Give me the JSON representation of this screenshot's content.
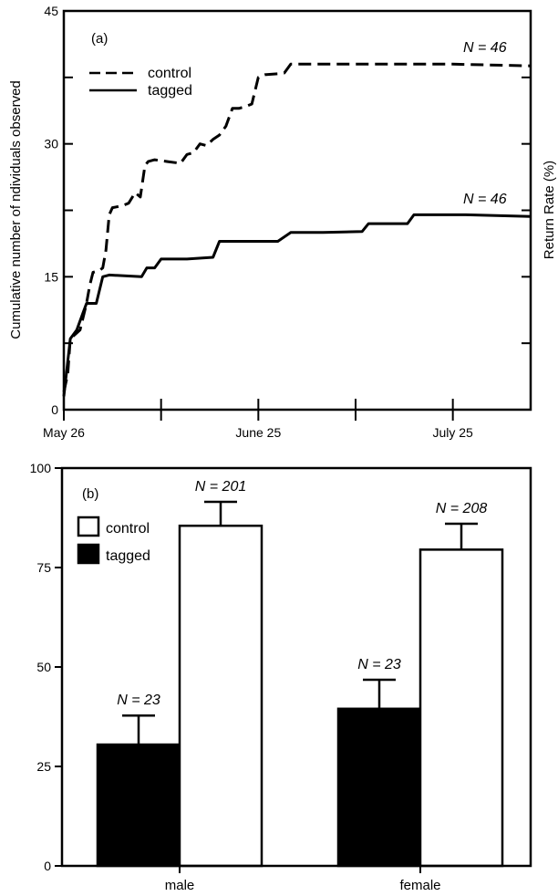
{
  "chart_data": [
    {
      "type": "line",
      "panel_label": "(a)",
      "ylabel": "Cumulative number of ndividuals observed",
      "right_ylabel": "Return Rate (%)",
      "ylim": [
        0,
        45
      ],
      "yticks": [
        0,
        15,
        30,
        45
      ],
      "x_day_range": [
        0,
        72
      ],
      "xticks": [
        {
          "day": 0,
          "label": "May 26"
        },
        {
          "day": 15,
          "label": ""
        },
        {
          "day": 30,
          "label": "June 25"
        },
        {
          "day": 45,
          "label": ""
        },
        {
          "day": 60,
          "label": "July 25"
        }
      ],
      "legend": [
        {
          "label": "control",
          "style": "dashed"
        },
        {
          "label": "tagged",
          "style": "solid"
        }
      ],
      "series": [
        {
          "name": "control",
          "style": "dashed",
          "end_label": "N = 46",
          "points": [
            [
              0,
              2
            ],
            [
              0.6,
              4
            ],
            [
              1,
              8
            ],
            [
              2.5,
              9
            ],
            [
              3.5,
              12
            ],
            [
              4,
              14
            ],
            [
              4.5,
              15.5
            ],
            [
              5.5,
              15.7
            ],
            [
              6,
              16
            ],
            [
              6.5,
              18
            ],
            [
              7,
              22
            ],
            [
              7.5,
              22.8
            ],
            [
              9,
              23
            ],
            [
              10,
              23.3
            ],
            [
              11,
              24.5
            ],
            [
              11.8,
              24
            ],
            [
              12.5,
              27.5
            ],
            [
              13,
              28
            ],
            [
              14,
              28.2
            ],
            [
              16,
              28
            ],
            [
              18,
              27.8
            ],
            [
              19,
              28.8
            ],
            [
              20,
              29
            ],
            [
              21,
              30
            ],
            [
              22,
              29.8
            ],
            [
              23,
              30.5
            ],
            [
              24,
              31
            ],
            [
              25,
              32
            ],
            [
              26,
              34
            ],
            [
              27,
              34
            ],
            [
              28,
              34.2
            ],
            [
              29,
              34.5
            ],
            [
              30,
              37.5
            ],
            [
              31,
              37.8
            ],
            [
              33,
              37.9
            ],
            [
              34,
              38
            ],
            [
              35,
              39
            ],
            [
              40,
              39
            ],
            [
              50,
              39
            ],
            [
              60,
              39
            ],
            [
              72,
              38.8
            ]
          ]
        },
        {
          "name": "tagged",
          "style": "solid",
          "end_label": "N = 46",
          "points": [
            [
              0,
              1.5
            ],
            [
              1,
              8
            ],
            [
              2,
              9
            ],
            [
              3,
              11
            ],
            [
              3.5,
              12
            ],
            [
              5,
              12
            ],
            [
              6,
              15
            ],
            [
              7,
              15.2
            ],
            [
              12,
              15
            ],
            [
              12.8,
              16
            ],
            [
              14,
              16
            ],
            [
              15,
              17
            ],
            [
              19,
              17
            ],
            [
              23,
              17.2
            ],
            [
              24,
              19
            ],
            [
              33,
              19
            ],
            [
              35,
              20
            ],
            [
              40,
              20
            ],
            [
              46,
              20.1
            ],
            [
              47,
              21
            ],
            [
              53,
              21
            ],
            [
              54,
              22
            ],
            [
              62,
              22
            ],
            [
              72,
              21.8
            ]
          ]
        }
      ]
    },
    {
      "type": "bar",
      "panel_label": "(b)",
      "ylim": [
        0,
        100
      ],
      "yticks": [
        0,
        25,
        50,
        75,
        100
      ],
      "categories": [
        "male",
        "female"
      ],
      "legend": [
        {
          "label": "control",
          "color": "#ffffff"
        },
        {
          "label": "tagged",
          "color": "#000000"
        }
      ],
      "series": [
        {
          "name": "tagged",
          "color": "#000000",
          "values": [
            30.5,
            39.5
          ],
          "errors": [
            7.3,
            7.3
          ],
          "n_labels": [
            "N = 23",
            "N = 23"
          ]
        },
        {
          "name": "control",
          "color": "#ffffff",
          "values": [
            85.5,
            79.5
          ],
          "errors": [
            6,
            6.5
          ],
          "n_labels": [
            "N = 201",
            "N = 208"
          ]
        }
      ]
    }
  ]
}
